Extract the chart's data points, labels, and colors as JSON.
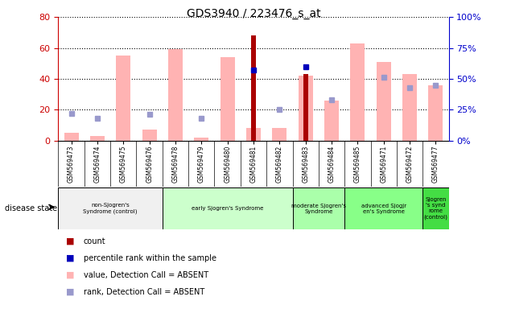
{
  "title": "GDS3940 / 223476_s_at",
  "samples": [
    "GSM569473",
    "GSM569474",
    "GSM569475",
    "GSM569476",
    "GSM569478",
    "GSM569479",
    "GSM569480",
    "GSM569481",
    "GSM569482",
    "GSM569483",
    "GSM569484",
    "GSM569485",
    "GSM569471",
    "GSM569472",
    "GSM569477"
  ],
  "pink_bars": [
    5,
    3,
    55,
    7,
    59,
    2,
    54,
    8,
    8,
    42,
    26,
    63,
    51,
    43,
    36
  ],
  "dark_red_bars": [
    0,
    0,
    0,
    0,
    0,
    0,
    0,
    68,
    0,
    43,
    0,
    0,
    0,
    0,
    0
  ],
  "dark_red_thin": [
    0,
    0,
    0,
    0,
    0,
    0,
    0,
    0,
    0,
    43,
    0,
    0,
    0,
    0,
    0
  ],
  "blue_squares_right": [
    null,
    null,
    null,
    null,
    null,
    null,
    null,
    57,
    null,
    60,
    null,
    null,
    null,
    null,
    null
  ],
  "lavender_squares_right": [
    null,
    18,
    null,
    null,
    null,
    18,
    null,
    null,
    25,
    null,
    33,
    null,
    51,
    43,
    45
  ],
  "lavender_squares_right2": [
    22,
    null,
    null,
    21,
    null,
    null,
    null,
    null,
    null,
    null,
    null,
    null,
    null,
    null,
    null
  ],
  "ylim_left": [
    0,
    80
  ],
  "ylim_right": [
    0,
    100
  ],
  "yticks_left": [
    0,
    20,
    40,
    60,
    80
  ],
  "yticks_right": [
    0,
    25,
    50,
    75,
    100
  ],
  "pink_color": "#ffb3b3",
  "dark_red_color": "#aa0000",
  "blue_color": "#0000bb",
  "lavender_color": "#9999cc",
  "left_tick_color": "#cc0000",
  "right_tick_color": "#0000cc",
  "disease_groups": [
    {
      "label": "non-Sjogren's\nSyndrome (control)",
      "start": 0,
      "end": 4,
      "color": "#ffffff"
    },
    {
      "label": "early Sjogren's Syndrome",
      "start": 4,
      "end": 9,
      "color": "#ccffcc"
    },
    {
      "label": "moderate Sjogren's\nSyndrome",
      "start": 9,
      "end": 11,
      "color": "#aaffaa"
    },
    {
      "label": "advanced Sjogjr\nen's Syndrome",
      "start": 11,
      "end": 14,
      "color": "#88ff88"
    },
    {
      "label": "Sjogren\n's synd\nrome\n(control)",
      "start": 14,
      "end": 15,
      "color": "#44dd44"
    }
  ],
  "disease_state_label": "disease state"
}
